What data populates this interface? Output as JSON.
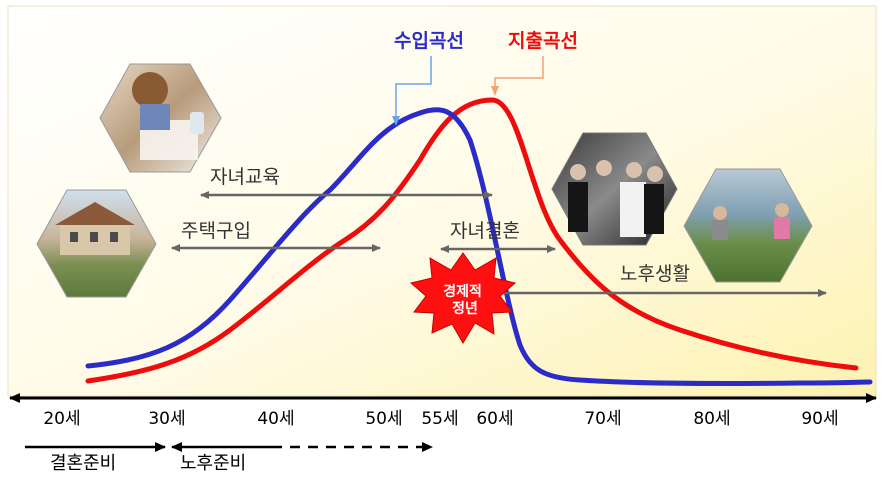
{
  "curves": {
    "income_label": "수입곡선",
    "expense_label": "지출곡선",
    "income_color": "#2b2bc8",
    "expense_color": "#ee0d0d"
  },
  "events": {
    "child_education": "자녀교육",
    "house_purchase": "주택구입",
    "child_marriage": "자녀결혼",
    "retirement_life": "노후생활",
    "economic_retirement": "경제적\n정년"
  },
  "ages": [
    "20세",
    "30세",
    "40세",
    "50세",
    "55세",
    "60세",
    "70세",
    "80세",
    "90세"
  ],
  "prep": {
    "marriage_prep": "결혼준비",
    "retirement_prep": "노후준비"
  },
  "photos": {
    "child": "child-studying-photo",
    "house": "house-photo",
    "family": "family-wedding-photo",
    "golf": "golf-seniors-photo"
  }
}
